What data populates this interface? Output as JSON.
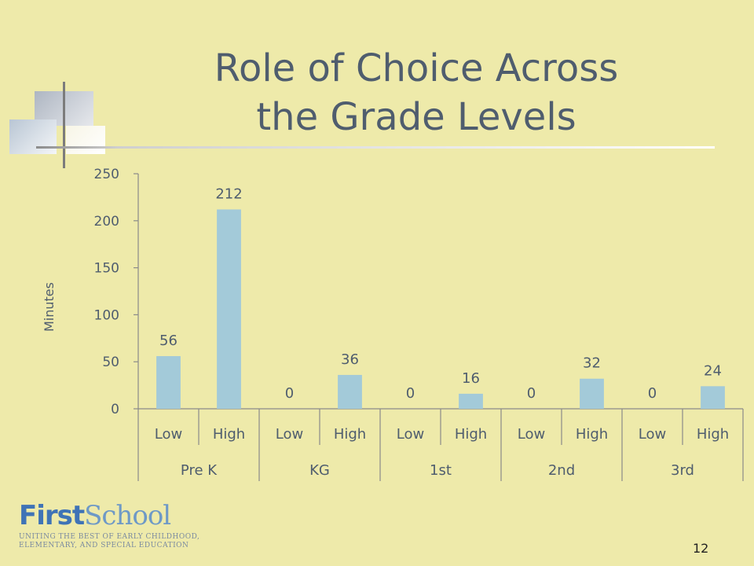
{
  "slide": {
    "title_line1": "Role of Choice Across",
    "title_line2": "the Grade Levels",
    "page_number": "12",
    "logo": {
      "first": "First",
      "school": "School",
      "tagline_line1": "UNITING THE BEST OF EARLY CHILDHOOD,",
      "tagline_line2": "ELEMENTARY, AND SPECIAL EDUCATION"
    },
    "colors": {
      "background": "#eeeaaa",
      "bar": "#a3cad9",
      "title": "#4f5d6e"
    }
  },
  "chart_data": {
    "type": "bar",
    "title": "",
    "xlabel": "",
    "ylabel": "Minutes",
    "ylim": [
      0,
      250
    ],
    "yticks": [
      0,
      50,
      100,
      150,
      200,
      250
    ],
    "groups": [
      {
        "name": "Pre K",
        "categories": [
          "Low",
          "High"
        ],
        "values": [
          56,
          212
        ]
      },
      {
        "name": "KG",
        "categories": [
          "Low",
          "High"
        ],
        "values": [
          0,
          36
        ]
      },
      {
        "name": "1st",
        "categories": [
          "Low",
          "High"
        ],
        "values": [
          0,
          16
        ]
      },
      {
        "name": "2nd",
        "categories": [
          "Low",
          "High"
        ],
        "values": [
          0,
          32
        ]
      },
      {
        "name": "3rd",
        "categories": [
          "Low",
          "High"
        ],
        "values": [
          0,
          24
        ]
      }
    ],
    "data_labels": true,
    "grid": false
  }
}
